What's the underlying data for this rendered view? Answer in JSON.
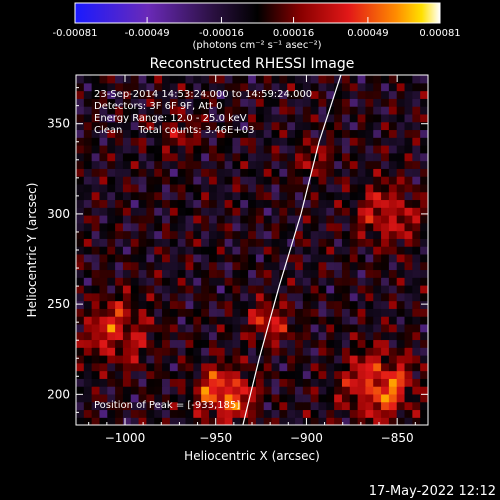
{
  "colorbar": {
    "tick_labels": [
      "-0.00081",
      "-0.00049",
      "-0.00016",
      "0.00016",
      "0.00049",
      "0.00081"
    ],
    "units": "(photons cm⁻² s⁻¹ asec⁻²)"
  },
  "plot": {
    "title": "Reconstructed RHESSI Image",
    "annotations": [
      "23-Sep-2014 14:53:24.000 to 14:59:24.000",
      "Detectors: 3F 6F 9F, Att 0",
      "Energy Range: 12.0 - 25.0 keV",
      "Clean     Total counts: 3.46E+03"
    ],
    "peak_label": "Position of Peak = [-933,185]"
  },
  "timestamp": "17-May-2022 12:12",
  "chart_data": {
    "type": "heatmap",
    "title": "Reconstructed RHESSI Image",
    "xlabel": "Heliocentric X (arcsec)",
    "ylabel": "Heliocentric Y (arcsec)",
    "xlim": [
      -1027,
      -833
    ],
    "ylim": [
      183,
      377
    ],
    "x_ticks": [
      -1000,
      -950,
      -900,
      -850
    ],
    "x_tick_labels": [
      "−1000",
      "−950",
      "−900",
      "−850"
    ],
    "y_ticks": [
      200,
      250,
      300,
      350
    ],
    "y_tick_labels": [
      "200",
      "250",
      "300",
      "350"
    ],
    "colorbar_range": [
      -0.00081,
      0.00081
    ],
    "colormap": [
      "#1a1aff",
      "#6a2ab8",
      "#3a1a55",
      "#000000",
      "#8a0000",
      "#e21818",
      "#ff8c00",
      "#ffe000",
      "#ffffff"
    ],
    "limb_curve": [
      [
        -935,
        183
      ],
      [
        -926,
        220
      ],
      [
        -915,
        260
      ],
      [
        -903,
        300
      ],
      [
        -893,
        340
      ],
      [
        -881,
        377
      ]
    ],
    "peak_position": [
      -933,
      185
    ],
    "hot_regions": [
      {
        "x": -945,
        "y": 200,
        "r": 14,
        "v": 0.00081
      },
      {
        "x": -920,
        "y": 240,
        "r": 10,
        "v": 0.0006
      },
      {
        "x": -860,
        "y": 205,
        "r": 18,
        "v": 0.0007
      },
      {
        "x": -855,
        "y": 300,
        "r": 16,
        "v": 0.0005
      },
      {
        "x": -1005,
        "y": 235,
        "r": 18,
        "v": 0.0005
      },
      {
        "x": -895,
        "y": 330,
        "r": 10,
        "v": 0.0003
      },
      {
        "x": -970,
        "y": 345,
        "r": 12,
        "v": 0.00025
      }
    ]
  }
}
